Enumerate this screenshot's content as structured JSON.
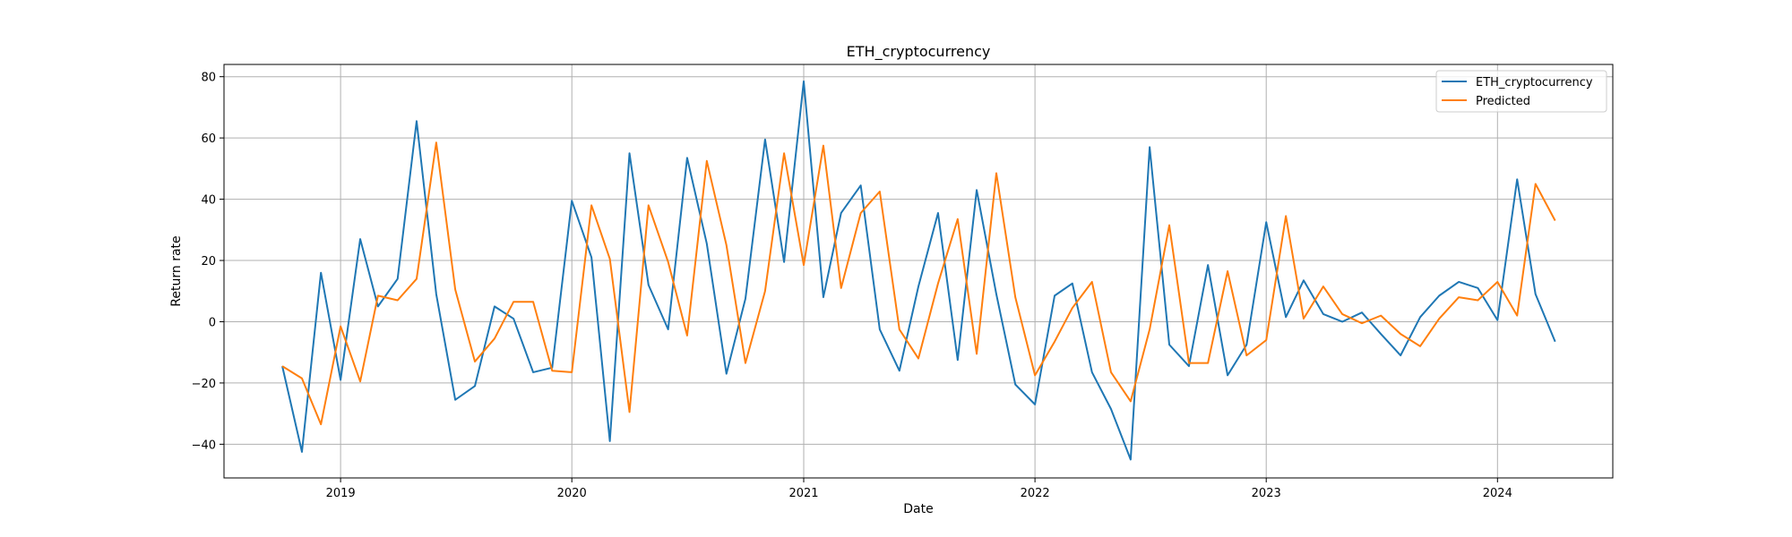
{
  "chart_data": {
    "type": "line",
    "title": "ETH_cryptocurrency",
    "xlabel": "Date",
    "ylabel": "Return rate",
    "x_tick_labels": [
      "2019",
      "2020",
      "2021",
      "2022",
      "2023",
      "2024"
    ],
    "y_tick_labels": [
      "−40",
      "−20",
      "0",
      "20",
      "40",
      "60",
      "80"
    ],
    "xlim": [
      "2018-07-01",
      "2024-07-01"
    ],
    "ylim": [
      -51,
      84
    ],
    "grid": true,
    "legend_position": "top-right",
    "x": [
      "2018-10-01",
      "2018-11-01",
      "2018-12-01",
      "2019-01-01",
      "2019-02-01",
      "2019-03-01",
      "2019-04-01",
      "2019-05-01",
      "2019-06-01",
      "2019-07-01",
      "2019-08-01",
      "2019-09-01",
      "2019-10-01",
      "2019-11-01",
      "2019-12-01",
      "2020-01-01",
      "2020-02-01",
      "2020-03-01",
      "2020-04-01",
      "2020-05-01",
      "2020-06-01",
      "2020-07-01",
      "2020-08-01",
      "2020-09-01",
      "2020-10-01",
      "2020-11-01",
      "2020-12-01",
      "2021-01-01",
      "2021-02-01",
      "2021-03-01",
      "2021-04-01",
      "2021-05-01",
      "2021-06-01",
      "2021-07-01",
      "2021-08-01",
      "2021-09-01",
      "2021-10-01",
      "2021-11-01",
      "2021-12-01",
      "2022-01-01",
      "2022-02-01",
      "2022-03-01",
      "2022-04-01",
      "2022-05-01",
      "2022-06-01",
      "2022-07-01",
      "2022-08-01",
      "2022-09-01",
      "2022-10-01",
      "2022-11-01",
      "2022-12-01",
      "2023-01-01",
      "2023-02-01",
      "2023-03-01",
      "2023-04-01",
      "2023-05-01",
      "2023-06-01",
      "2023-07-01",
      "2023-08-01",
      "2023-09-01",
      "2023-10-01",
      "2023-11-01",
      "2023-12-01",
      "2024-01-01",
      "2024-02-01",
      "2024-03-01",
      "2024-04-01"
    ],
    "series": [
      {
        "name": "ETH_cryptocurrency",
        "color": "#1f77b4",
        "values": [
          -14.5,
          -42.5,
          16,
          -19,
          27,
          5,
          14,
          65.5,
          9,
          -25.5,
          -21,
          5,
          1,
          -16.5,
          -15,
          39.5,
          21,
          -39,
          55,
          12,
          -2.5,
          53.5,
          25.5,
          -17,
          7.5,
          59.5,
          19.5,
          78.5,
          8,
          35.5,
          44.5,
          -2.5,
          -16,
          11.5,
          35.5,
          -12.5,
          43,
          9,
          -20.5,
          -27,
          8.5,
          12.5,
          -16.5,
          -28.5,
          -45,
          57,
          -7.5,
          -14.5,
          18.5,
          -17.5,
          -7.5,
          32.5,
          1.5,
          13.5,
          2.5,
          0,
          3,
          -4,
          -11,
          1.5,
          8.5,
          13,
          11,
          0.5,
          46.5,
          9,
          -6.5
        ]
      },
      {
        "name": "Predicted",
        "color": "#ff7f0e",
        "values": [
          -14.5,
          -18.5,
          -33.5,
          -1.5,
          -19.5,
          8.5,
          7,
          14,
          58.5,
          10.5,
          -13,
          -5.5,
          6.5,
          6.5,
          -16,
          -16.5,
          38,
          20.5,
          -29.5,
          38,
          19.5,
          -4.5,
          52.5,
          25,
          -13.5,
          10,
          55,
          18.5,
          57.5,
          11,
          35.5,
          42.5,
          -2.5,
          -12,
          12.5,
          33.5,
          -10.5,
          48.5,
          8,
          -17.5,
          -6.5,
          4.5,
          13,
          -16.5,
          -26,
          -2.5,
          31.5,
          -13.5,
          -13.5,
          16.5,
          -11,
          -6,
          34.5,
          1,
          11.5,
          2.5,
          -0.5,
          2,
          -4,
          -8,
          1,
          8,
          7,
          13,
          2,
          45,
          33
        ]
      }
    ]
  }
}
